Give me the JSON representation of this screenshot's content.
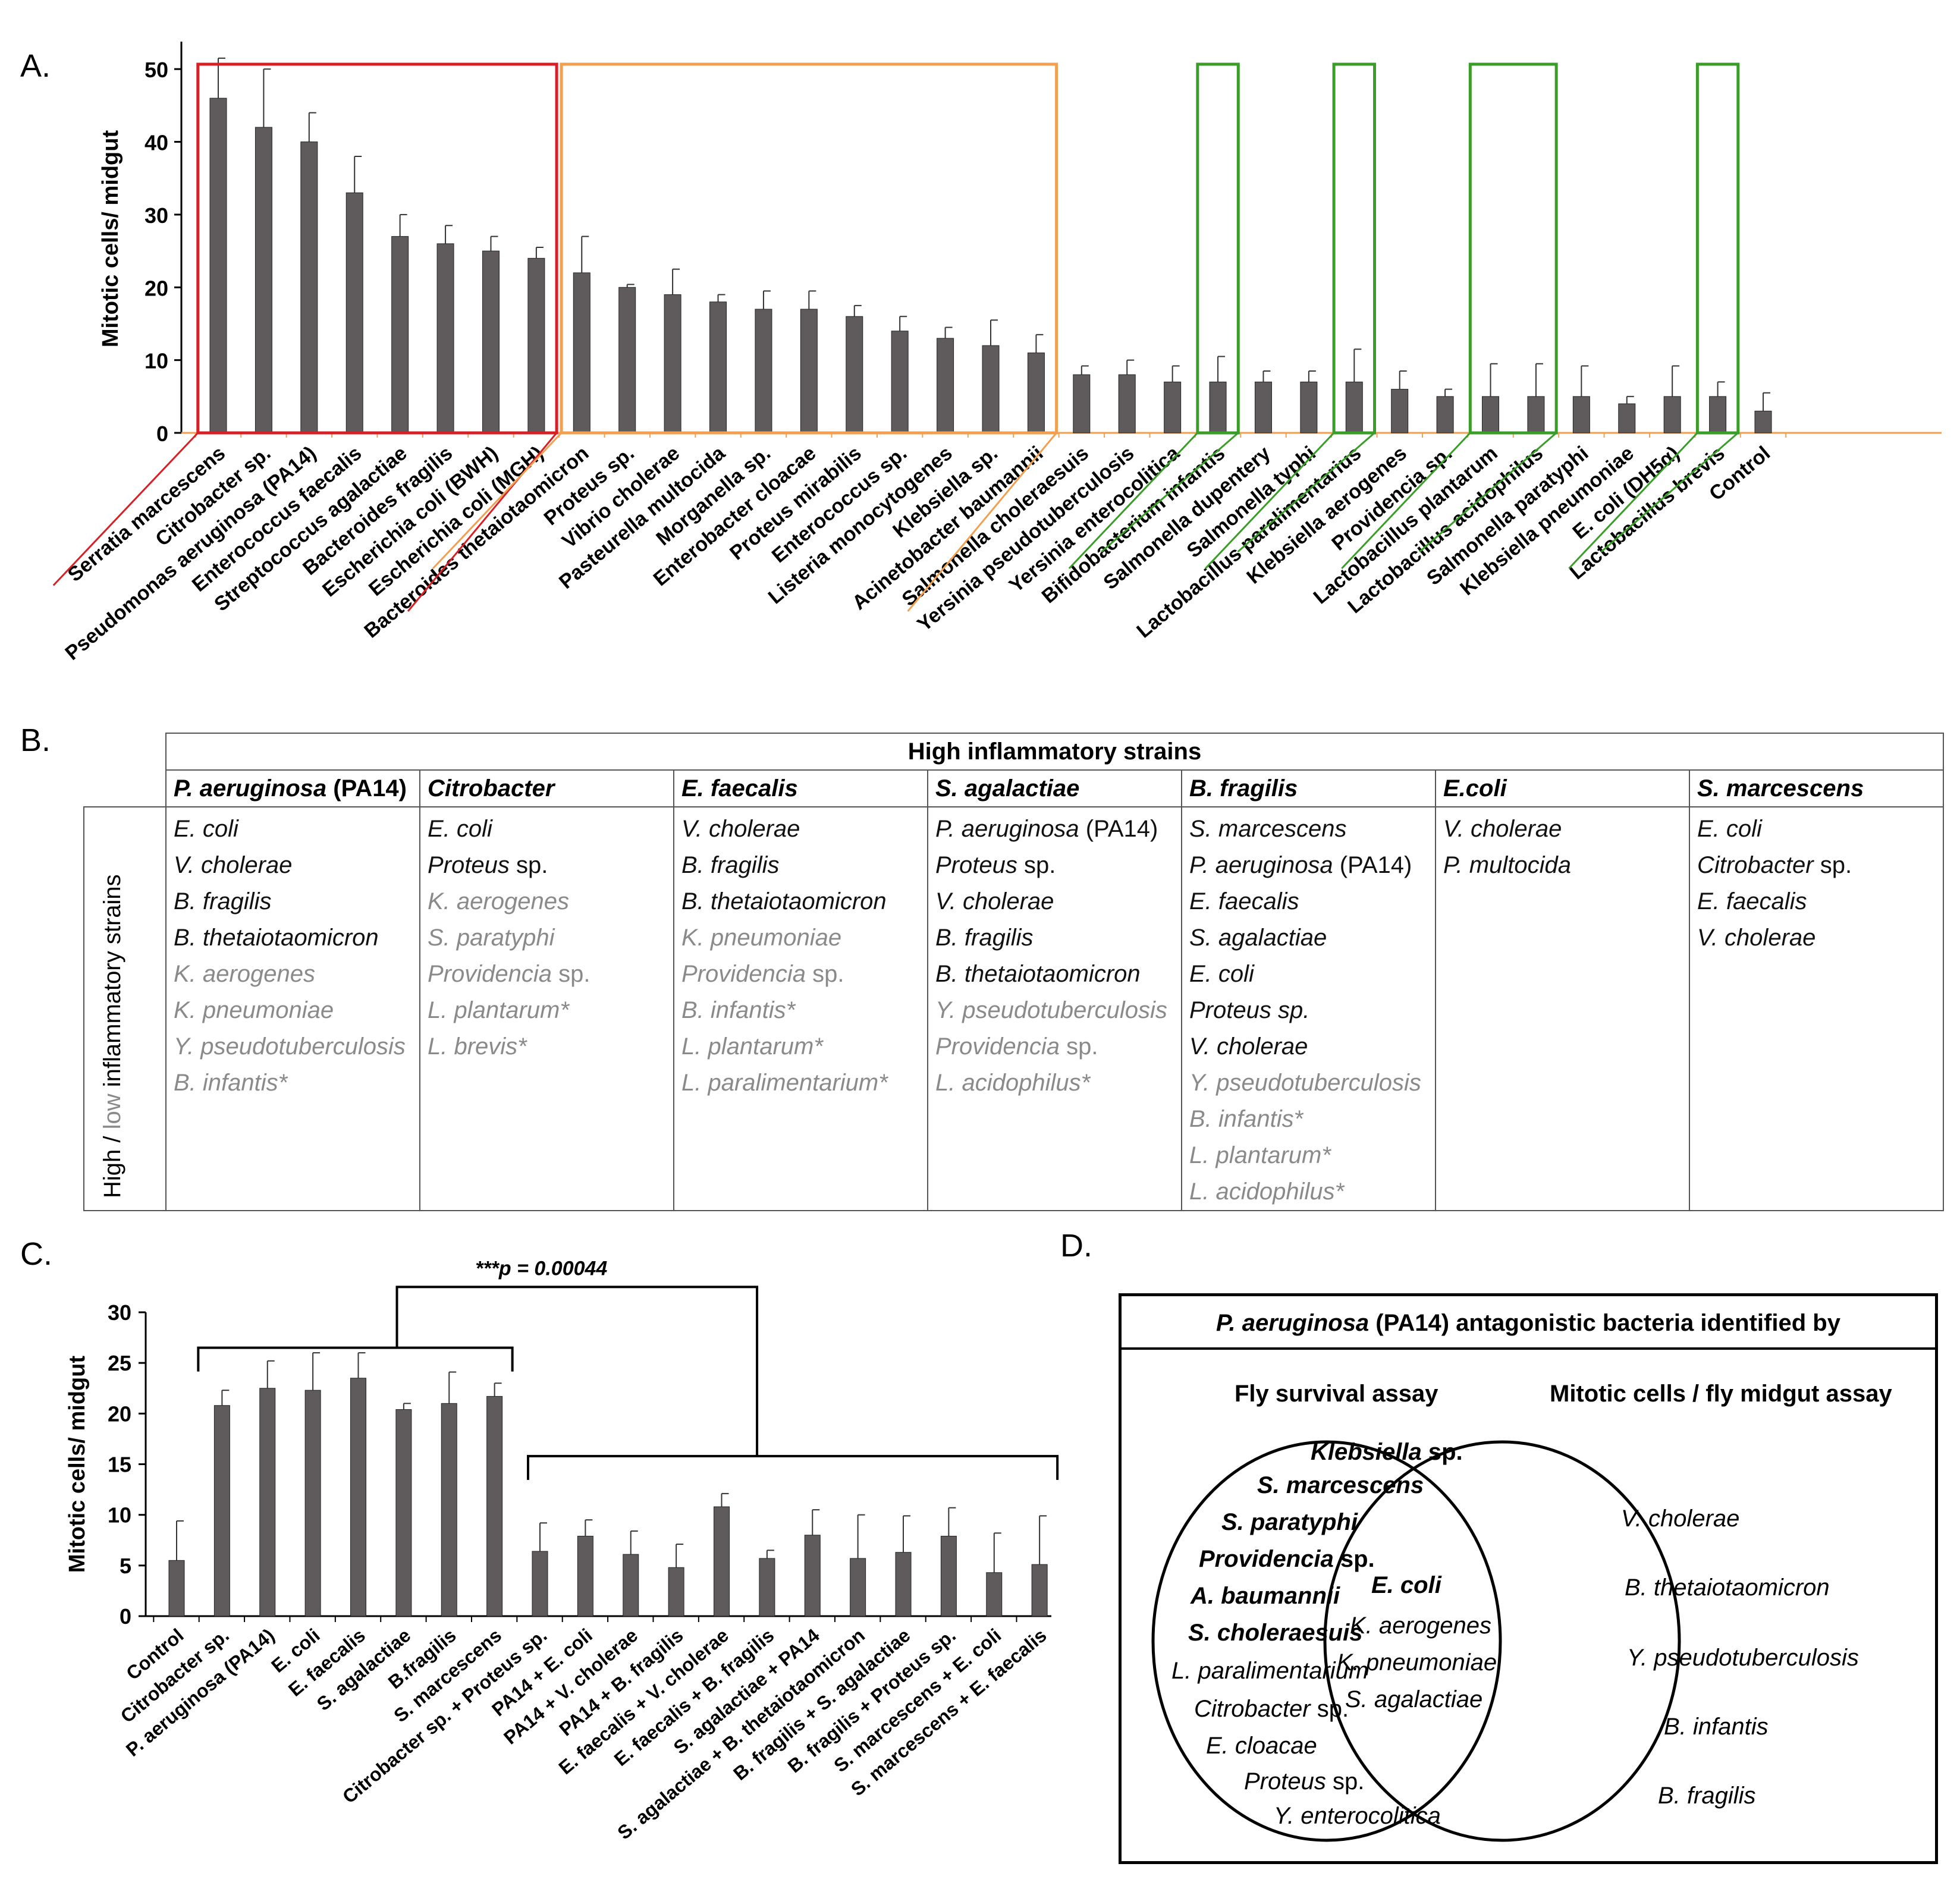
{
  "panels": {
    "a": "A.",
    "b": "B.",
    "c": "C.",
    "d": "D."
  },
  "colors": {
    "bar": "#5f5b5c",
    "axis": "#f0a050",
    "red_box": "#d81f26",
    "orange_box": "#f0a050",
    "green_box": "#3a9d28"
  },
  "chart_data": [
    {
      "type": "bar",
      "panel": "A",
      "ylabel": "Mitotic cells/ midgut",
      "ylim": [
        0,
        55
      ],
      "yticks": [
        0,
        10,
        20,
        30,
        40,
        50
      ],
      "categories": [
        "Serratia marcescens",
        "Citrobacter sp.",
        "Pseudomonas aeruginosa (PA14)",
        "Enterococcus faecalis",
        "Streptococcus agalactiae",
        "Bacteroides fragilis",
        "Escherichia coli (BWH)",
        "Escherichia coli (MGH)",
        "Bacteroides thetaiotaomicron",
        "Proteus sp.",
        "Vibrio cholerae",
        "Pasteurella multocida",
        "Morganella sp.",
        "Enterobacter cloacae",
        "Proteus mirabilis",
        "Enterococcus sp.",
        "Listeria monocytogenes",
        "Klebsiella sp.",
        "Acinetobacter baumannii",
        "Salmonella  choleraesuis",
        "Yersinia pseudotuberculosis",
        "Yersinia enterocolitica",
        "Bifidobacterium infantis",
        "Salmonella dupentery",
        "Salmonella typhi",
        "Lactobacillus paralimentarius",
        "Klebsiella aerogenes",
        "Providencia sp.",
        "Lactobacillus plantarum",
        "Lactobacillus acidophilus",
        "Salmonella paratyphi",
        "Klebsiella pneumoniae",
        "E. coli (DH5α)",
        "Lactobacillus brevis",
        "Control"
      ],
      "values": [
        46,
        42,
        40,
        33,
        27,
        26,
        25,
        24,
        22,
        20,
        19,
        18,
        17,
        17,
        16,
        14,
        13,
        12,
        11,
        8,
        8,
        7,
        7,
        7,
        7,
        7,
        6,
        5,
        5,
        5,
        5,
        4,
        5,
        5,
        3
      ],
      "errors": [
        5.5,
        8,
        4,
        5,
        3,
        2.5,
        2,
        1.5,
        5,
        0.4,
        3.5,
        1,
        2.5,
        2.5,
        1.5,
        2,
        1.5,
        3.5,
        2.5,
        1.2,
        2,
        2.2,
        3.5,
        1.5,
        1.5,
        4.5,
        2.5,
        1,
        4.5,
        4.5,
        4.2,
        1,
        4.2,
        2,
        2.5
      ],
      "groups": [
        {
          "name": "red",
          "from": 0,
          "to": 7
        },
        {
          "name": "orange",
          "from": 8,
          "to": 18
        },
        {
          "name": "green",
          "from": 22,
          "to": 22
        },
        {
          "name": "green",
          "from": 25,
          "to": 25
        },
        {
          "name": "green",
          "from": 28,
          "to": 29
        },
        {
          "name": "green",
          "from": 33,
          "to": 33
        }
      ]
    },
    {
      "type": "bar",
      "panel": "C",
      "ylabel": "Mitotic cells/ midgut",
      "ylim": [
        0,
        30
      ],
      "yticks": [
        0,
        5,
        10,
        15,
        20,
        25,
        30
      ],
      "annotation": "***p = 0.00044",
      "categories": [
        "Control",
        "Citrobacter sp.",
        "P. aeruginosa (PA14)",
        "E. coli",
        "E. faecalis",
        "S. agalactiae",
        "B.fragilis",
        "S. marcescens",
        "Citrobacter sp. + Proteus sp.",
        "PA14 + E. coli",
        "PA14 + V. cholerae",
        "PA14 + B. fragilis",
        "E. faecalis + V. cholerae",
        "E. faecalis + B. fragilis",
        "S. agalactiae + PA14",
        "S. agalactiae + B. thetaiotaomicron",
        "B. fragilis + S. agalactiae",
        "B. fragilis + Proteus sp.",
        "S. marcescens + E. coli",
        "S. marcescens + E. faecalis"
      ],
      "values": [
        5.5,
        20.8,
        22.5,
        22.3,
        23.5,
        20.4,
        21,
        21.7,
        6.4,
        7.9,
        6.1,
        4.8,
        10.8,
        5.7,
        8,
        5.7,
        6.3,
        7.9,
        4.3,
        5.1
      ],
      "errors": [
        3.9,
        1.5,
        2.7,
        3.7,
        2.5,
        0.6,
        3.1,
        1.3,
        2.8,
        1.6,
        2.3,
        2.3,
        1.3,
        0.8,
        2.5,
        4.3,
        3.6,
        2.8,
        3.9,
        4.8
      ]
    }
  ],
  "table_b": {
    "title": "High inflammatory strains",
    "side_label_high": "High /",
    "side_label_low": "low",
    "side_label_rest": "inflammatory strains",
    "columns": [
      {
        "head_italic": "P. aeruginosa",
        "head_plain": " (PA14)",
        "items": [
          {
            "t": "E. coli",
            "lo": false
          },
          {
            "t": "V. cholerae",
            "lo": false
          },
          {
            "t": "B. fragilis",
            "lo": false
          },
          {
            "t": "B. thetaiotaomicron",
            "lo": false
          },
          {
            "t": "K. aerogenes",
            "lo": true
          },
          {
            "t": "K. pneumoniae",
            "lo": true
          },
          {
            "t": "Y. pseudotuberculosis",
            "lo": true
          },
          {
            "t": "B. infantis*",
            "lo": true
          }
        ]
      },
      {
        "head_italic": "Citrobacter",
        "head_plain": "",
        "items": [
          {
            "t": "E. coli",
            "lo": false
          },
          {
            "t": "Proteus",
            "s": " sp.",
            "lo": false
          },
          {
            "t": "K. aerogenes",
            "lo": true
          },
          {
            "t": "S. paratyphi",
            "lo": true
          },
          {
            "t": "Providencia",
            "s": " sp.",
            "lo": true
          },
          {
            "t": "L. plantarum*",
            "lo": true
          },
          {
            "t": "L. brevis*",
            "lo": true
          }
        ]
      },
      {
        "head_italic": "E. faecalis",
        "head_plain": "",
        "items": [
          {
            "t": "V. cholerae",
            "lo": false
          },
          {
            "t": "B. fragilis",
            "lo": false
          },
          {
            "t": "B. thetaiotaomicron",
            "lo": false
          },
          {
            "t": "K. pneumoniae",
            "lo": true
          },
          {
            "t": "Providencia",
            "s": " sp.",
            "lo": true
          },
          {
            "t": "B. infantis*",
            "lo": true
          },
          {
            "t": "L. plantarum*",
            "lo": true
          },
          {
            "t": "L. paralimentarium*",
            "lo": true
          }
        ]
      },
      {
        "head_italic": "S. agalactiae",
        "head_plain": "",
        "items": [
          {
            "t": "P. aeruginosa",
            "s": " (PA14)",
            "lo": false
          },
          {
            "t": "Proteus",
            "s": " sp.",
            "lo": false
          },
          {
            "t": "V. cholerae",
            "lo": false
          },
          {
            "t": "B. fragilis",
            "lo": false
          },
          {
            "t": "B. thetaiotaomicron",
            "lo": false
          },
          {
            "t": "Y. pseudotuberculosis",
            "lo": true
          },
          {
            "t": "Providencia",
            "s": " sp.",
            "lo": true
          },
          {
            "t": "L. acidophilus*",
            "lo": true
          }
        ]
      },
      {
        "head_italic": "B. fragilis",
        "head_plain": "",
        "items": [
          {
            "t": "S. marcescens",
            "lo": false
          },
          {
            "t": "P. aeruginosa",
            "s": " (PA14)",
            "lo": false
          },
          {
            "t": "E. faecalis",
            "lo": false
          },
          {
            "t": "S. agalactiae",
            "lo": false
          },
          {
            "t": "E. coli",
            "lo": false
          },
          {
            "t": "Proteus sp.",
            "lo": false
          },
          {
            "t": "V. cholerae",
            "lo": false
          },
          {
            "t": "Y. pseudotuberculosis",
            "lo": true
          },
          {
            "t": "B. infantis*",
            "lo": true
          },
          {
            "t": "L. plantarum*",
            "lo": true
          },
          {
            "t": "L. acidophilus*",
            "lo": true
          }
        ]
      },
      {
        "head_italic": "E.coli",
        "head_plain": "",
        "items": [
          {
            "t": "V. cholerae",
            "lo": false
          },
          {
            "t": "P. multocida",
            "lo": false
          }
        ]
      },
      {
        "head_italic": "S. marcescens",
        "head_plain": "",
        "items": [
          {
            "t": "E. coli",
            "lo": false
          },
          {
            "t": "Citrobacter",
            "s": " sp.",
            "lo": false
          },
          {
            "t": "E. faecalis",
            "lo": false
          },
          {
            "t": "V. cholerae",
            "lo": false
          }
        ]
      }
    ]
  },
  "venn_d": {
    "title_italic": "P. aeruginosa",
    "title_rest": " (PA14) antagonistic bacteria identified by",
    "left_title": "Fly survival assay",
    "right_title": "Mitotic cells / fly midgut assay",
    "left_only": {
      "klebsiella": "Klebsiella",
      "klebsiella_sp": " sp.",
      "s_marcescens": "S. marcescens",
      "s_paratyphi": "S. paratyphi",
      "providencia": "Providencia",
      "providencia_sp": " sp.",
      "a_baumannii": "A. baumannii",
      "s_choleraesuis": "S. choleraesuis",
      "l_paralimentarium": "L. paralimentarium",
      "citrobacter": "Citrobacter",
      "citrobacter_sp": " sp.",
      "e_cloacae": "E. cloacae",
      "proteus": "Proteus",
      "proteus_sp": " sp.",
      "y_enterocolitica": "Y. enterocolitica"
    },
    "overlap": {
      "e_coli": "E. coli",
      "k_aerogenes": "K. aerogenes",
      "k_pneumoniae": "K. pneumoniae",
      "s_agalactiae": "S. agalactiae"
    },
    "right_only": {
      "v_cholerae": "V. cholerae",
      "b_theta": "B. thetaiotaomicron",
      "y_pseudo": "Y. pseudotuberculosis",
      "b_infantis": "B. infantis",
      "b_fragilis": "B. fragilis"
    }
  }
}
